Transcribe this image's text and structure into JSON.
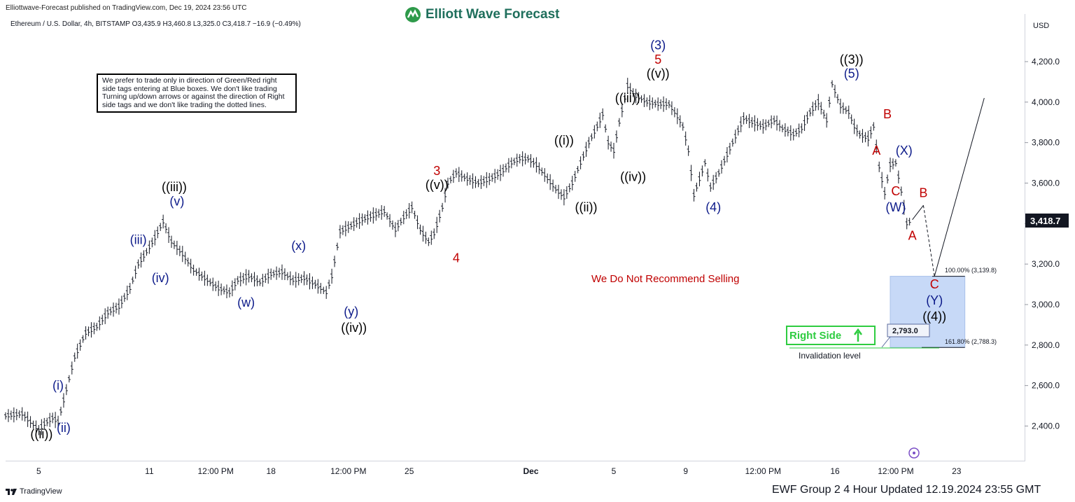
{
  "header": {
    "published_by": "Elliottwave-Forecast published on TradingView.com, Dec 19, 2024 23:56 UTC",
    "brand": "Elliott Wave Forecast",
    "symbol_line": "Ethereum / U.S. Dollar, 4h, BITSTAMP  O3,435.9  H3,460.8  L3,325.0  C3,418.7  −16.9 (−0.49%)"
  },
  "note_box": "We prefer to trade only in direction of Green/Red right side tags entering at Blue boxes. We don't like trading Turning up/down arrows or against the direction of Right side tags and we don't like trading the dotted lines.",
  "price_axis": {
    "currency": "USD",
    "last_price": "3,418.7"
  },
  "annotations": {
    "not_recommend": "We Do Not Recommend Selling",
    "right_side": "Right Side",
    "invalidation_value": "2,793.0",
    "invalidation_label": "Invalidation level",
    "fib_100": "100.00% (3,139.8)",
    "fib_161": "161.80% (2,788.3)"
  },
  "footer": {
    "tradingview": "TradingView",
    "update_text": "EWF Group 2 4 Hour Updated 12.19.2024 23:55 GMT"
  },
  "chart_data": {
    "type": "line",
    "title": "",
    "xlabel": "",
    "ylabel": "USD",
    "ylim": [
      2250,
      4400
    ],
    "y_ticks": [
      2400,
      2600,
      2800,
      3000,
      3200,
      3400,
      3600,
      3800,
      4000,
      4200
    ],
    "y_tick_labels": [
      "2,400.0",
      "2,600.0",
      "2,800.0",
      "3,000.0",
      "3,200.0",
      "3,400.0",
      "3,600.0",
      "3,800.0",
      "4,000.0",
      "4,200.0"
    ],
    "x_tick_labels": [
      {
        "label": "5",
        "bar": 12
      },
      {
        "label": "11",
        "bar": 52
      },
      {
        "label": "12:00 PM",
        "bar": 76
      },
      {
        "label": "18",
        "bar": 96
      },
      {
        "label": "12:00 PM",
        "bar": 124
      },
      {
        "label": "25",
        "bar": 146
      },
      {
        "label": "Dec",
        "bar": 190
      },
      {
        "label": "5",
        "bar": 220
      },
      {
        "label": "9",
        "bar": 246
      },
      {
        "label": "12:00 PM",
        "bar": 274
      },
      {
        "label": "16",
        "bar": 300
      },
      {
        "label": "12:00 PM",
        "bar": 322
      },
      {
        "label": "23",
        "bar": 344
      }
    ],
    "x_ticks_bold": [
      "Dec"
    ],
    "series": [
      {
        "values": [
          [
            0,
            2450
          ],
          [
            6,
            2460
          ],
          [
            12,
            2380
          ],
          [
            14,
            2410
          ],
          [
            17,
            2440
          ],
          [
            19,
            2420
          ],
          [
            22,
            2580
          ],
          [
            25,
            2740
          ],
          [
            29,
            2860
          ],
          [
            33,
            2890
          ],
          [
            37,
            2960
          ],
          [
            41,
            2990
          ],
          [
            45,
            3080
          ],
          [
            48,
            3200
          ],
          [
            51,
            3260
          ],
          [
            54,
            3330
          ],
          [
            57,
            3410
          ],
          [
            60,
            3310
          ],
          [
            64,
            3250
          ],
          [
            68,
            3170
          ],
          [
            72,
            3130
          ],
          [
            77,
            3080
          ],
          [
            81,
            3060
          ],
          [
            84,
            3120
          ],
          [
            88,
            3140
          ],
          [
            92,
            3110
          ],
          [
            96,
            3150
          ],
          [
            100,
            3160
          ],
          [
            104,
            3120
          ],
          [
            108,
            3130
          ],
          [
            112,
            3100
          ],
          [
            116,
            3060
          ],
          [
            118,
            3140
          ],
          [
            121,
            3360
          ],
          [
            125,
            3390
          ],
          [
            129,
            3420
          ],
          [
            133,
            3440
          ],
          [
            137,
            3460
          ],
          [
            141,
            3370
          ],
          [
            144,
            3430
          ],
          [
            147,
            3480
          ],
          [
            150,
            3370
          ],
          [
            153,
            3310
          ],
          [
            155,
            3350
          ],
          [
            158,
            3480
          ],
          [
            160,
            3600
          ],
          [
            163,
            3650
          ],
          [
            167,
            3620
          ],
          [
            171,
            3600
          ],
          [
            175,
            3620
          ],
          [
            179,
            3650
          ],
          [
            183,
            3700
          ],
          [
            186,
            3720
          ],
          [
            189,
            3720
          ],
          [
            192,
            3690
          ],
          [
            195,
            3640
          ],
          [
            199,
            3570
          ],
          [
            202,
            3530
          ],
          [
            205,
            3600
          ],
          [
            208,
            3700
          ],
          [
            211,
            3800
          ],
          [
            214,
            3880
          ],
          [
            216,
            3940
          ],
          [
            218,
            3800
          ],
          [
            220,
            3760
          ],
          [
            222,
            3900
          ],
          [
            225,
            4080
          ],
          [
            228,
            4030
          ],
          [
            232,
            4000
          ],
          [
            236,
            3990
          ],
          [
            240,
            3990
          ],
          [
            243,
            3930
          ],
          [
            245,
            3880
          ],
          [
            247,
            3760
          ],
          [
            249,
            3540
          ],
          [
            251,
            3620
          ],
          [
            253,
            3700
          ],
          [
            255,
            3580
          ],
          [
            258,
            3650
          ],
          [
            261,
            3740
          ],
          [
            264,
            3830
          ],
          [
            267,
            3920
          ],
          [
            270,
            3900
          ],
          [
            274,
            3880
          ],
          [
            278,
            3910
          ],
          [
            281,
            3870
          ],
          [
            285,
            3840
          ],
          [
            288,
            3870
          ],
          [
            291,
            3950
          ],
          [
            294,
            4000
          ],
          [
            297,
            3910
          ],
          [
            299,
            4090
          ],
          [
            302,
            3980
          ],
          [
            305,
            3950
          ],
          [
            307,
            3880
          ],
          [
            309,
            3840
          ],
          [
            312,
            3820
          ],
          [
            314,
            3880
          ],
          [
            316,
            3680
          ],
          [
            318,
            3550
          ],
          [
            320,
            3690
          ],
          [
            322,
            3700
          ],
          [
            324,
            3560
          ],
          [
            326,
            3400
          ],
          [
            328,
            3419
          ]
        ]
      }
    ],
    "wave_labels": [
      {
        "text": "((ii))",
        "bar": 13,
        "price": 2340,
        "color": "#000000"
      },
      {
        "text": "(i)",
        "bar": 19,
        "price": 2580,
        "color": "#0d1b8a"
      },
      {
        "text": "(ii)",
        "bar": 21,
        "price": 2370,
        "color": "#0d1b8a"
      },
      {
        "text": "(iii)",
        "bar": 48,
        "price": 3300,
        "color": "#0d1b8a"
      },
      {
        "text": "(iv)",
        "bar": 56,
        "price": 3110,
        "color": "#0d1b8a"
      },
      {
        "text": "((iii))",
        "bar": 61,
        "price": 3560,
        "color": "#000000"
      },
      {
        "text": "(v)",
        "bar": 62,
        "price": 3490,
        "color": "#0d1b8a"
      },
      {
        "text": "(w)",
        "bar": 87,
        "price": 2990,
        "color": "#0d1b8a"
      },
      {
        "text": "(x)",
        "bar": 106,
        "price": 3270,
        "color": "#0d1b8a"
      },
      {
        "text": "(y)",
        "bar": 125,
        "price": 2945,
        "color": "#0d1b8a"
      },
      {
        "text": "((iv))",
        "bar": 126,
        "price": 2865,
        "color": "#000000"
      },
      {
        "text": "3",
        "bar": 156,
        "price": 3640,
        "color": "#c00000"
      },
      {
        "text": "((v))",
        "bar": 156,
        "price": 3570,
        "color": "#000000"
      },
      {
        "text": "4",
        "bar": 163,
        "price": 3210,
        "color": "#c00000"
      },
      {
        "text": "((i))",
        "bar": 202,
        "price": 3790,
        "color": "#000000"
      },
      {
        "text": "((ii))",
        "bar": 210,
        "price": 3460,
        "color": "#000000"
      },
      {
        "text": "((iii))",
        "bar": 225,
        "price": 4000,
        "color": "#000000"
      },
      {
        "text": "((iv))",
        "bar": 227,
        "price": 3610,
        "color": "#000000"
      },
      {
        "text": "(3)",
        "bar": 236,
        "price": 4260,
        "color": "#0d1b8a"
      },
      {
        "text": "5",
        "bar": 236,
        "price": 4190,
        "color": "#c00000"
      },
      {
        "text": "((v))",
        "bar": 236,
        "price": 4120,
        "color": "#000000"
      },
      {
        "text": "(4)",
        "bar": 256,
        "price": 3460,
        "color": "#0d1b8a"
      },
      {
        "text": "((3))",
        "bar": 306,
        "price": 4190,
        "color": "#000000"
      },
      {
        "text": "(5)",
        "bar": 306,
        "price": 4120,
        "color": "#0d1b8a"
      },
      {
        "text": "B",
        "bar": 319,
        "price": 3920,
        "color": "#c00000"
      },
      {
        "text": "A",
        "bar": 315,
        "price": 3740,
        "color": "#c00000"
      },
      {
        "text": "(X)",
        "bar": 325,
        "price": 3740,
        "color": "#0d1b8a"
      },
      {
        "text": "C",
        "bar": 322,
        "price": 3540,
        "color": "#c00000"
      },
      {
        "text": "(W)",
        "bar": 322,
        "price": 3460,
        "color": "#0d1b8a"
      },
      {
        "text": "B",
        "bar": 332,
        "price": 3530,
        "color": "#c00000"
      },
      {
        "text": "A",
        "bar": 328,
        "price": 3320,
        "color": "#c00000"
      },
      {
        "text": "C",
        "bar": 336,
        "price": 3080,
        "color": "#c00000"
      },
      {
        "text": "(Y)",
        "bar": 336,
        "price": 3000,
        "color": "#0d1b8a"
      },
      {
        "text": "((4))",
        "bar": 336,
        "price": 2920,
        "color": "#000000"
      }
    ],
    "blue_box": {
      "bar_start": 320,
      "bar_end": 347,
      "price_top": 3139.8,
      "price_bottom": 2788.3
    },
    "projection": [
      [
        328,
        3419
      ],
      [
        332,
        3490
      ],
      [
        336,
        3140
      ],
      [
        354,
        4020
      ]
    ]
  }
}
